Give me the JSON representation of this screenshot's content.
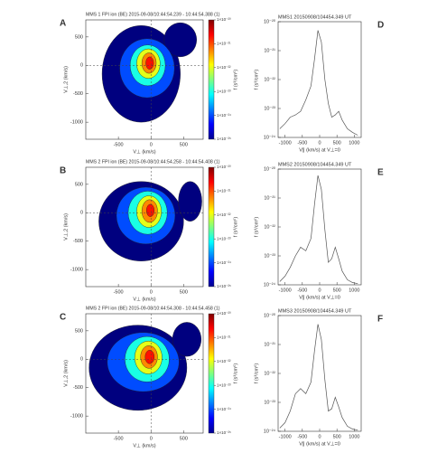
{
  "chart_data": [
    {
      "type": "contour",
      "panel_label": "A",
      "title": "MMS 1 FPI ion (BE) 2015-09-08/10:44:54.239 - 10:44:54.388 (1)",
      "xlabel": "V⊥ (km/s)",
      "ylabel": "V⊥,2 (km/s)",
      "colorbar_label": "f (s³/cm⁶)",
      "xlim": [
        -1000,
        800
      ],
      "ylim": [
        -1300,
        800
      ],
      "xticks": [
        -500,
        0,
        500
      ],
      "yticks": [
        -1000,
        -500,
        0,
        500
      ],
      "clim": [
        1e-25,
        1e-20
      ],
      "cticks": [
        {
          "value": 1e-25,
          "label": "1×10⁻²⁵"
        },
        {
          "value": 1e-24,
          "label": "1×10⁻²⁴"
        },
        {
          "value": 1e-23,
          "label": "1×10⁻²³"
        },
        {
          "value": 1e-22,
          "label": "1×10⁻²²"
        },
        {
          "value": 1e-21,
          "label": "1×10⁻²¹"
        },
        {
          "value": 1e-20,
          "label": "1×10⁻²⁰"
        }
      ],
      "contours": [
        {
          "x": -150,
          "y": -150,
          "rx": 600,
          "ry": 850,
          "f": 1e-25
        },
        {
          "x": 450,
          "y": 450,
          "rx": 250,
          "ry": 300,
          "f": 1e-25
        },
        {
          "x": -60,
          "y": -50,
          "rx": 420,
          "ry": 520,
          "f": 1e-24
        },
        {
          "x": -50,
          "y": 0,
          "rx": 270,
          "ry": 360,
          "f": 1e-23
        },
        {
          "x": -40,
          "y": 30,
          "rx": 180,
          "ry": 260,
          "f": 1e-22
        },
        {
          "x": -30,
          "y": 40,
          "rx": 110,
          "ry": 180,
          "f": 5e-22
        },
        {
          "x": -20,
          "y": 40,
          "rx": 60,
          "ry": 110,
          "f": 2e-21
        }
      ]
    },
    {
      "type": "contour",
      "panel_label": "B",
      "title": "MMS 2 FPI ion (BE) 2015-09-08/10:44:54.258 - 10:44:54.408 (1)",
      "xlabel": "V⊥ (km/s)",
      "ylabel": "V⊥,2 (km/s)",
      "colorbar_label": "f (s³/cm⁶)",
      "xlim": [
        -1000,
        800
      ],
      "ylim": [
        -1300,
        800
      ],
      "xticks": [
        -500,
        0,
        500
      ],
      "yticks": [
        -1000,
        -500,
        0,
        500
      ],
      "clim": [
        1e-25,
        1e-20
      ],
      "cticks": [
        {
          "value": 1e-25,
          "label": "1×10⁻²⁵"
        },
        {
          "value": 1e-24,
          "label": "1×10⁻²⁴"
        },
        {
          "value": 1e-23,
          "label": "1×10⁻²³"
        },
        {
          "value": 1e-22,
          "label": "1×10⁻²²"
        },
        {
          "value": 1e-21,
          "label": "1×10⁻²¹"
        },
        {
          "value": 1e-20,
          "label": "1×10⁻²⁰"
        }
      ],
      "contours": [
        {
          "x": -150,
          "y": -150,
          "rx": 650,
          "ry": 700,
          "f": 1e-25
        },
        {
          "x": 600,
          "y": 200,
          "rx": 180,
          "ry": 350,
          "f": 1e-25
        },
        {
          "x": -80,
          "y": -50,
          "rx": 450,
          "ry": 500,
          "f": 1e-24
        },
        {
          "x": -50,
          "y": 0,
          "rx": 300,
          "ry": 380,
          "f": 1e-23
        },
        {
          "x": -30,
          "y": 20,
          "rx": 190,
          "ry": 280,
          "f": 1e-22
        },
        {
          "x": -20,
          "y": 30,
          "rx": 120,
          "ry": 200,
          "f": 5e-22
        },
        {
          "x": -10,
          "y": 40,
          "rx": 60,
          "ry": 110,
          "f": 2e-21
        }
      ]
    },
    {
      "type": "contour",
      "panel_label": "C",
      "title": "MMS 2 FPI ion (BE) 2015-09-08/10:44:54.308 - 10:44:54.458 (1)",
      "xlabel": "V⊥ (km/s)",
      "ylabel": "V⊥,2 (km/s)",
      "colorbar_label": "f (s³/cm⁶)",
      "xlim": [
        -1000,
        800
      ],
      "ylim": [
        -1300,
        800
      ],
      "xticks": [
        -500,
        0,
        500
      ],
      "yticks": [
        -1000,
        -500,
        0,
        500
      ],
      "clim": [
        1e-25,
        1e-20
      ],
      "cticks": [
        {
          "value": 1e-25,
          "label": "1×10⁻²⁵"
        },
        {
          "value": 1e-24,
          "label": "1×10⁻²⁴"
        },
        {
          "value": 1e-23,
          "label": "1×10⁻²³"
        },
        {
          "value": 1e-22,
          "label": "1×10⁻²²"
        },
        {
          "value": 1e-21,
          "label": "1×10⁻²¹"
        },
        {
          "value": 1e-20,
          "label": "1×10⁻²⁰"
        }
      ],
      "contours": [
        {
          "x": -200,
          "y": -150,
          "rx": 750,
          "ry": 750,
          "f": 1e-25
        },
        {
          "x": 550,
          "y": 350,
          "rx": 220,
          "ry": 300,
          "f": 1e-25
        },
        {
          "x": -120,
          "y": -50,
          "rx": 550,
          "ry": 520,
          "f": 1e-24
        },
        {
          "x": -60,
          "y": 0,
          "rx": 340,
          "ry": 400,
          "f": 1e-23
        },
        {
          "x": -40,
          "y": 30,
          "rx": 210,
          "ry": 290,
          "f": 1e-22
        },
        {
          "x": -30,
          "y": 40,
          "rx": 130,
          "ry": 200,
          "f": 5e-22
        },
        {
          "x": -20,
          "y": 40,
          "rx": 70,
          "ry": 120,
          "f": 2e-21
        }
      ]
    },
    {
      "type": "line",
      "panel_label": "D",
      "title": "MMS1 20150908/104454.349 UT",
      "xlabel": "V∥ (km/s) at V⊥=0",
      "ylabel": "f (s³/cm⁶)",
      "xlim": [
        -1200,
        1200
      ],
      "ylim": [
        1e-24,
        1e-20
      ],
      "log_y": true,
      "xticks": [
        -1000,
        -500,
        0,
        500,
        1000
      ],
      "yticks": [
        {
          "value": 1e-24,
          "label": "10⁻²⁴"
        },
        {
          "value": 1e-23,
          "label": "10⁻²³"
        },
        {
          "value": 1e-22,
          "label": "10⁻²²"
        },
        {
          "value": 1e-21,
          "label": "10⁻²¹"
        },
        {
          "value": 1e-20,
          "label": "10⁻²⁰"
        }
      ],
      "color": "#555555",
      "x": [
        -1150,
        -1000,
        -850,
        -700,
        -550,
        -400,
        -250,
        -150,
        -50,
        50,
        150,
        250,
        350,
        450,
        550,
        650,
        800,
        950,
        1100
      ],
      "values": [
        2e-24,
        3e-24,
        5e-24,
        6e-24,
        8e-24,
        2e-23,
        6e-23,
        5e-22,
        5e-21,
        2e-21,
        1e-22,
        1.5e-23,
        5e-24,
        6e-24,
        8e-24,
        4e-24,
        2e-24,
        1.5e-24,
        1.2e-24
      ]
    },
    {
      "type": "line",
      "panel_label": "E",
      "title": "MMS2 20150908/104454.349 UT",
      "xlabel": "V∥ (km/s) at V⊥=0",
      "ylabel": "f (s³/cm⁶)",
      "xlim": [
        -1200,
        1200
      ],
      "ylim": [
        1e-24,
        1e-20
      ],
      "log_y": true,
      "xticks": [
        -1000,
        -500,
        0,
        500,
        1000
      ],
      "yticks": [
        {
          "value": 1e-24,
          "label": "10⁻²⁴"
        },
        {
          "value": 1e-23,
          "label": "10⁻²³"
        },
        {
          "value": 1e-22,
          "label": "10⁻²²"
        },
        {
          "value": 1e-21,
          "label": "10⁻²¹"
        },
        {
          "value": 1e-20,
          "label": "10⁻²⁰"
        }
      ],
      "color": "#555555",
      "x": [
        -1150,
        -1000,
        -850,
        -700,
        -550,
        -400,
        -250,
        -150,
        -50,
        50,
        150,
        250,
        350,
        450,
        550,
        650,
        800,
        950,
        1100
      ],
      "values": [
        1.3e-24,
        2e-24,
        4e-24,
        1e-23,
        2e-23,
        1.5e-23,
        4e-23,
        6e-22,
        6e-21,
        2e-21,
        8e-23,
        6e-24,
        8e-24,
        2e-23,
        8e-24,
        3e-24,
        1.5e-24,
        1.2e-24,
        1.1e-24
      ]
    },
    {
      "type": "line",
      "panel_label": "F",
      "title": "MMS3 20150908/104454.349 UT",
      "xlabel": "V∥ (km/s) at V⊥=0",
      "ylabel": "f (s³/cm⁶)",
      "xlim": [
        -1200,
        1200
      ],
      "ylim": [
        1e-24,
        1e-20
      ],
      "log_y": true,
      "xticks": [
        -1000,
        -500,
        0,
        500,
        1000
      ],
      "yticks": [
        {
          "value": 1e-24,
          "label": "10⁻²⁴"
        },
        {
          "value": 1e-23,
          "label": "10⁻²³"
        },
        {
          "value": 1e-22,
          "label": "10⁻²²"
        },
        {
          "value": 1e-21,
          "label": "10⁻²¹"
        },
        {
          "value": 1e-20,
          "label": "10⁻²⁰"
        }
      ],
      "color": "#555555",
      "x": [
        -1150,
        -1000,
        -850,
        -700,
        -550,
        -400,
        -250,
        -150,
        -50,
        50,
        150,
        250,
        350,
        450,
        550,
        650,
        800,
        950,
        1100
      ],
      "values": [
        1.3e-24,
        2e-24,
        5e-24,
        2e-23,
        3e-23,
        2e-23,
        5e-23,
        6e-22,
        5e-21,
        1.5e-21,
        6e-23,
        5e-24,
        6e-24,
        1.5e-23,
        7e-24,
        3e-24,
        1.5e-24,
        1.2e-24,
        1.1e-24
      ]
    }
  ]
}
